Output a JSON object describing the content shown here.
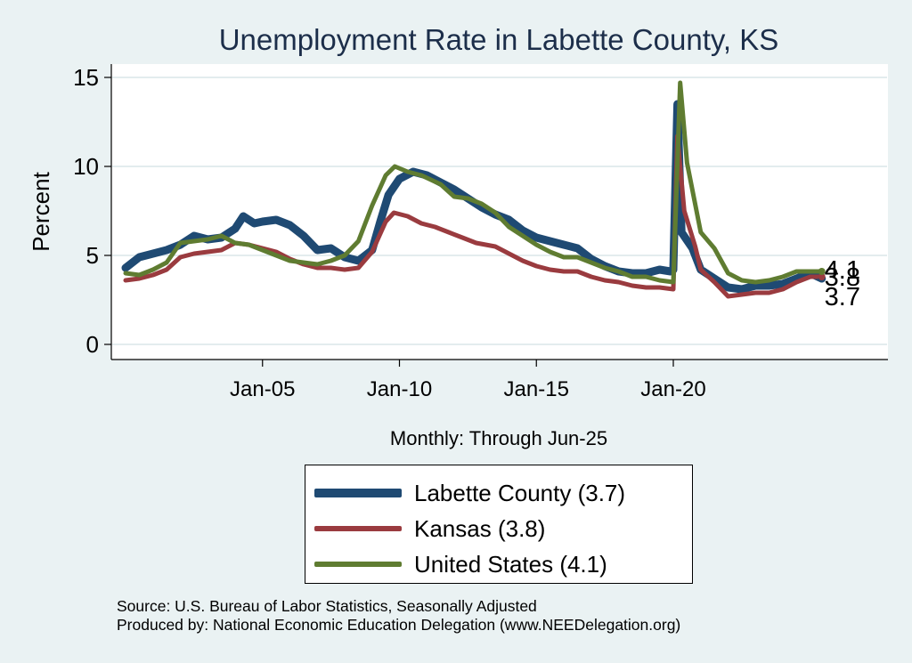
{
  "chart_data": {
    "type": "line",
    "title": "Unemployment Rate in Labette  County, KS",
    "subtitle": "Monthly: Through Jun-25",
    "ylabel": "Percent",
    "xlabel": "",
    "ylim": [
      0,
      15
    ],
    "yticks": [
      "0",
      "5",
      "10",
      "15"
    ],
    "xticks": [
      {
        "label": "Jan-05",
        "x": 2005.0
      },
      {
        "label": "Jan-10",
        "x": 2010.0
      },
      {
        "label": "Jan-15",
        "x": 2015.0
      },
      {
        "label": "Jan-20",
        "x": 2020.0
      }
    ],
    "grid": true,
    "legend_position": "bottom",
    "series": [
      {
        "name": "Labette  County (3.7)",
        "color": "#1f4a73",
        "end_label": "3.7",
        "points": [
          [
            2000.0,
            4.3
          ],
          [
            2000.5,
            4.9
          ],
          [
            2001.0,
            5.1
          ],
          [
            2001.5,
            5.3
          ],
          [
            2002.0,
            5.6
          ],
          [
            2002.5,
            6.1
          ],
          [
            2003.0,
            5.9
          ],
          [
            2003.5,
            6.0
          ],
          [
            2004.0,
            6.5
          ],
          [
            2004.3,
            7.2
          ],
          [
            2004.7,
            6.8
          ],
          [
            2005.0,
            6.9
          ],
          [
            2005.5,
            7.0
          ],
          [
            2006.0,
            6.7
          ],
          [
            2006.5,
            6.1
          ],
          [
            2007.0,
            5.3
          ],
          [
            2007.5,
            5.4
          ],
          [
            2008.0,
            4.9
          ],
          [
            2008.5,
            4.7
          ],
          [
            2009.0,
            5.3
          ],
          [
            2009.3,
            6.9
          ],
          [
            2009.6,
            8.4
          ],
          [
            2010.0,
            9.3
          ],
          [
            2010.5,
            9.7
          ],
          [
            2011.0,
            9.5
          ],
          [
            2011.5,
            9.1
          ],
          [
            2012.0,
            8.7
          ],
          [
            2012.5,
            8.2
          ],
          [
            2013.0,
            7.7
          ],
          [
            2013.5,
            7.3
          ],
          [
            2014.0,
            7.0
          ],
          [
            2014.5,
            6.4
          ],
          [
            2015.0,
            6.0
          ],
          [
            2015.5,
            5.8
          ],
          [
            2016.0,
            5.6
          ],
          [
            2016.5,
            5.4
          ],
          [
            2017.0,
            4.8
          ],
          [
            2017.5,
            4.4
          ],
          [
            2018.0,
            4.1
          ],
          [
            2018.5,
            4.0
          ],
          [
            2019.0,
            4.0
          ],
          [
            2019.5,
            4.2
          ],
          [
            2019.9,
            4.1
          ],
          [
            2020.0,
            4.2
          ],
          [
            2020.15,
            13.5
          ],
          [
            2020.3,
            6.3
          ],
          [
            2020.7,
            5.4
          ],
          [
            2021.0,
            4.2
          ],
          [
            2021.5,
            3.7
          ],
          [
            2022.0,
            3.2
          ],
          [
            2022.5,
            3.1
          ],
          [
            2023.0,
            3.3
          ],
          [
            2023.5,
            3.3
          ],
          [
            2024.0,
            3.4
          ],
          [
            2024.5,
            3.7
          ],
          [
            2025.0,
            4.0
          ],
          [
            2025.42,
            3.7
          ]
        ]
      },
      {
        "name": "Kansas (3.8)",
        "color": "#9a3b3f",
        "end_label": "3.8",
        "points": [
          [
            2000.0,
            3.6
          ],
          [
            2000.5,
            3.7
          ],
          [
            2001.0,
            3.9
          ],
          [
            2001.5,
            4.2
          ],
          [
            2002.0,
            4.9
          ],
          [
            2002.5,
            5.1
          ],
          [
            2003.0,
            5.2
          ],
          [
            2003.5,
            5.3
          ],
          [
            2004.0,
            5.7
          ],
          [
            2004.5,
            5.6
          ],
          [
            2005.0,
            5.4
          ],
          [
            2005.5,
            5.2
          ],
          [
            2006.0,
            4.8
          ],
          [
            2006.5,
            4.5
          ],
          [
            2007.0,
            4.3
          ],
          [
            2007.5,
            4.3
          ],
          [
            2008.0,
            4.2
          ],
          [
            2008.5,
            4.3
          ],
          [
            2009.0,
            5.2
          ],
          [
            2009.5,
            6.9
          ],
          [
            2009.8,
            7.4
          ],
          [
            2010.3,
            7.2
          ],
          [
            2010.8,
            6.8
          ],
          [
            2011.3,
            6.6
          ],
          [
            2011.8,
            6.3
          ],
          [
            2012.3,
            6.0
          ],
          [
            2012.8,
            5.7
          ],
          [
            2013.5,
            5.5
          ],
          [
            2014.0,
            5.1
          ],
          [
            2014.5,
            4.7
          ],
          [
            2015.0,
            4.4
          ],
          [
            2015.5,
            4.2
          ],
          [
            2016.0,
            4.1
          ],
          [
            2016.5,
            4.1
          ],
          [
            2017.0,
            3.8
          ],
          [
            2017.5,
            3.6
          ],
          [
            2018.0,
            3.5
          ],
          [
            2018.5,
            3.3
          ],
          [
            2019.0,
            3.2
          ],
          [
            2019.5,
            3.2
          ],
          [
            2020.0,
            3.1
          ],
          [
            2020.15,
            11.7
          ],
          [
            2020.4,
            7.5
          ],
          [
            2020.8,
            5.5
          ],
          [
            2021.0,
            4.2
          ],
          [
            2021.5,
            3.5
          ],
          [
            2022.0,
            2.7
          ],
          [
            2022.5,
            2.8
          ],
          [
            2023.0,
            2.9
          ],
          [
            2023.5,
            2.9
          ],
          [
            2024.0,
            3.1
          ],
          [
            2024.5,
            3.5
          ],
          [
            2025.0,
            3.8
          ],
          [
            2025.42,
            3.8
          ]
        ]
      },
      {
        "name": "United States (4.1)",
        "color": "#5f7c31",
        "end_label": "4.1",
        "points": [
          [
            2000.0,
            4.0
          ],
          [
            2000.5,
            3.9
          ],
          [
            2001.0,
            4.2
          ],
          [
            2001.5,
            4.6
          ],
          [
            2002.0,
            5.7
          ],
          [
            2002.5,
            5.8
          ],
          [
            2003.0,
            5.9
          ],
          [
            2003.5,
            6.1
          ],
          [
            2004.0,
            5.7
          ],
          [
            2004.5,
            5.6
          ],
          [
            2005.0,
            5.3
          ],
          [
            2005.5,
            5.0
          ],
          [
            2006.0,
            4.7
          ],
          [
            2006.5,
            4.6
          ],
          [
            2007.0,
            4.5
          ],
          [
            2007.5,
            4.7
          ],
          [
            2008.0,
            5.0
          ],
          [
            2008.5,
            5.8
          ],
          [
            2009.0,
            7.8
          ],
          [
            2009.5,
            9.5
          ],
          [
            2009.83,
            10.0
          ],
          [
            2010.3,
            9.7
          ],
          [
            2010.8,
            9.5
          ],
          [
            2011.5,
            9.0
          ],
          [
            2012.0,
            8.3
          ],
          [
            2012.5,
            8.2
          ],
          [
            2013.0,
            7.9
          ],
          [
            2013.5,
            7.4
          ],
          [
            2014.0,
            6.6
          ],
          [
            2014.5,
            6.1
          ],
          [
            2015.0,
            5.6
          ],
          [
            2015.5,
            5.2
          ],
          [
            2016.0,
            4.9
          ],
          [
            2016.5,
            4.9
          ],
          [
            2017.0,
            4.6
          ],
          [
            2017.5,
            4.3
          ],
          [
            2018.0,
            4.1
          ],
          [
            2018.5,
            3.8
          ],
          [
            2019.0,
            3.8
          ],
          [
            2019.5,
            3.6
          ],
          [
            2020.0,
            3.5
          ],
          [
            2020.25,
            14.7
          ],
          [
            2020.5,
            10.2
          ],
          [
            2021.0,
            6.3
          ],
          [
            2021.5,
            5.4
          ],
          [
            2022.0,
            4.0
          ],
          [
            2022.5,
            3.6
          ],
          [
            2023.0,
            3.5
          ],
          [
            2023.5,
            3.6
          ],
          [
            2024.0,
            3.8
          ],
          [
            2024.5,
            4.1
          ],
          [
            2025.0,
            4.1
          ],
          [
            2025.42,
            4.1
          ]
        ]
      }
    ]
  },
  "notes": {
    "source": "Source: U.S. Bureau of Labor Statistics, Seasonally Adjusted",
    "producer": "Produced by: National Economic Education Delegation (www.NEEDelegation.org)"
  },
  "colors": {
    "background": "#eaf2f3",
    "plot_background": "#ffffff",
    "gridline": "#e3ecee"
  }
}
